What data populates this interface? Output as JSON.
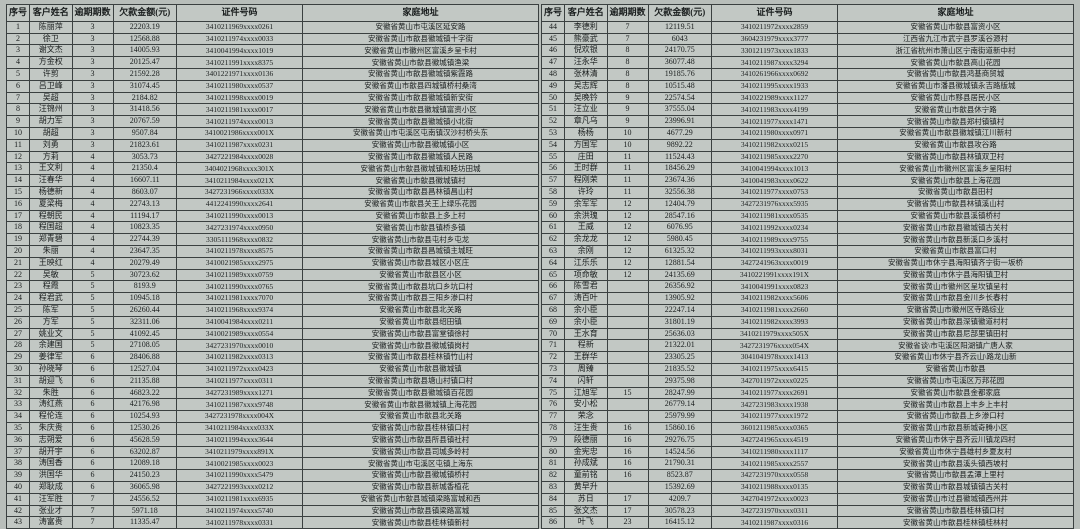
{
  "columns": [
    "序号",
    "客户姓名",
    "逾期期数",
    "欠款金额(元)",
    "证件号码",
    "家庭地址"
  ],
  "left": [
    [
      "1",
      "陈丽萍",
      "3",
      "22203.19",
      "3410211969xxxx0261",
      "安徽省黄山市屯溪区延安路"
    ],
    [
      "2",
      "徐卫",
      "3",
      "12568.88",
      "3410211974xxxx0033",
      "安徽省黄山市歙县徽城镇十字街"
    ],
    [
      "3",
      "谢文杰",
      "3",
      "14005.93",
      "3410041994xxxx1019",
      "安徽省黄山市徽州区富溪乡呈卡村"
    ],
    [
      "4",
      "方金权",
      "3",
      "20125.47",
      "3410211991xxxx8375",
      "安徽省黄山市歙县徽城镇渔梁"
    ],
    [
      "5",
      "许剪",
      "3",
      "21592.28",
      "3401221971xxxx0136",
      "安徽省黄山市歙县徽城镇紫霞路"
    ],
    [
      "6",
      "吕卫峰",
      "3",
      "31074.45",
      "3410211980xxxx0537",
      "安徽省黄山市歙县四城镇桥村桑湾"
    ],
    [
      "7",
      "吴超",
      "3",
      "2184.82",
      "3410211998xxxx0019",
      "安徽省黄山市歙县徽城镇新安街"
    ],
    [
      "8",
      "汪锦州",
      "3",
      "31418.56",
      "3410211981xxxx0017",
      "安徽省黄山市歙县徽城镇富资小区"
    ],
    [
      "9",
      "胡力军",
      "3",
      "20767.59",
      "3410211974xxxx0013",
      "安徽省黄山市歙县徽城镇小北街"
    ],
    [
      "10",
      "胡超",
      "3",
      "9507.84",
      "3410021986xxxx001X",
      "安徽省黄山市屯溪区屯南镇汉沙村桥头东"
    ],
    [
      "11",
      "刘勇",
      "3",
      "21823.61",
      "3410211987xxxx0231",
      "安徽省黄山市歙县徽城镇小区"
    ],
    [
      "12",
      "方莉",
      "4",
      "3053.73",
      "3427221984xxxx0028",
      "安徽省黄山市歙县徽城镇人民路"
    ],
    [
      "13",
      "王文利",
      "4",
      "21350.4",
      "3404021968xxxx301X",
      "安徽省黄山市歙县徽城镇和睦坊田城"
    ],
    [
      "14",
      "汪春华",
      "4",
      "16607.11",
      "3410211984xxxx021X",
      "安徽省黄山市歙县徽城镇村"
    ],
    [
      "15",
      "杨德新",
      "4",
      "8603.07",
      "3427231966xxxx033X",
      "安徽省黄山市歙县昌林镇昌山村"
    ],
    [
      "16",
      "夏梁梅",
      "4",
      "22743.13",
      "4412241990xxxx2641",
      "安徽省黄山市歙县关王上绿乐花园"
    ],
    [
      "17",
      "程朝民",
      "4",
      "11194.17",
      "3410211990xxxx0013",
      "安徽省黄山市歙县上多上村"
    ],
    [
      "18",
      "程国超",
      "4",
      "10823.35",
      "3427231974xxxx0950",
      "安徽省黄山市歙县镇桥多镇"
    ],
    [
      "19",
      "郑青碧",
      "4",
      "22744.39",
      "3305111968xxxx0832",
      "安徽省黄山市歙县屯村乡屯龙"
    ],
    [
      "20",
      "朱丽",
      "4",
      "23647.35",
      "3410211978xxxx8575",
      "安徽省黄山市歙县昌城镇主城旺"
    ],
    [
      "21",
      "王映红",
      "4",
      "20279.49",
      "3410021985xxxx2975",
      "安徽省黄山市歙县城区小区庄"
    ],
    [
      "22",
      "吴敏",
      "5",
      "30723.62",
      "3410211989xxxx0759",
      "安徽省黄山市歙县区小区"
    ],
    [
      "23",
      "程霞",
      "5",
      "8193.9",
      "3410211990xxxx0765",
      "安徽省黄山市歙县坑口乡坑口村"
    ],
    [
      "24",
      "程君武",
      "5",
      "10945.18",
      "3410211981xxxx7070",
      "安徽省黄山市歙县三阳乡渗口村"
    ],
    [
      "25",
      "陈军",
      "5",
      "26260.44",
      "3410211968xxxx9374",
      "安徽省黄山市歙县北关路"
    ],
    [
      "26",
      "方军",
      "5",
      "32311.06",
      "3410041984xxxx0211",
      "安徽省黄山市歙县绍田镇"
    ],
    [
      "27",
      "姚业文",
      "5",
      "41092.45",
      "3410021989xxxx0554",
      "安徽省黄山市歙县富堂镇徐村"
    ],
    [
      "28",
      "余建国",
      "5",
      "27108.05",
      "3427231970xxxx0010",
      "安徽省黄山市歙县徽城镇岗村"
    ],
    [
      "29",
      "姜律军",
      "6",
      "28406.88",
      "3410211982xxxx0313",
      "安徽省黄山市歙县桂林镇竹山村"
    ],
    [
      "30",
      "孙晓琴",
      "6",
      "12527.04",
      "3410211972xxxx0423",
      "安徽省黄山市歙县徽城镇"
    ],
    [
      "31",
      "胡迎飞",
      "6",
      "21135.88",
      "3410211977xxxx0311",
      "安徽省黄山市歙县塘山村镇口村"
    ],
    [
      "32",
      "朱胜",
      "6",
      "46823.22",
      "3427231989xxxx1271",
      "安徽省黄山市歙县徽城镇百花园"
    ],
    [
      "33",
      "涛红燕",
      "6",
      "42176.98",
      "3410211987xxxx9748",
      "安徽省黄山市歙县徽城镇上海花园"
    ],
    [
      "34",
      "程伦连",
      "6",
      "10254.93",
      "3427231978xxxx004X",
      "安徽省黄山市歙县北关路"
    ],
    [
      "35",
      "朱庆贵",
      "6",
      "12530.26",
      "3410211984xxxx033X",
      "安徽省黄山市歙县桂林镇口村"
    ],
    [
      "36",
      "志朔爱",
      "6",
      "45628.59",
      "3410211994xxxx3644",
      "安徽省黄山市歙县所县镇社村"
    ],
    [
      "37",
      "胡开宇",
      "6",
      "63202.87",
      "3410211979xxxx891X",
      "安徽省黄山市歙县司城多岭村"
    ],
    [
      "38",
      "涛国香",
      "6",
      "12089.18",
      "3410021985xxxx0023",
      "安徽省黄山市屯溪区屯镇上海东"
    ],
    [
      "39",
      "洪国华",
      "6",
      "24150.23",
      "3410211990xxxx5479",
      "安徽省黄山市歙县徽城镇桥村"
    ],
    [
      "40",
      "郑耿成",
      "6",
      "36065.98",
      "3427221993xxxx0212",
      "安徽省黄山市歙县新城香植花"
    ],
    [
      "41",
      "汪军胜",
      "7",
      "24556.52",
      "3410211981xxxx6935",
      "安徽省黄山市歙县城镇梁路富城和西"
    ],
    [
      "42",
      "张业才",
      "7",
      "5971.18",
      "3410211974xxxx5740",
      "安徽省黄山市歙县镇梁路富城"
    ],
    [
      "43",
      "涛富贵",
      "7",
      "11335.47",
      "3410211978xxxx0331",
      "安徽省黄山市歙县桂林镇新村"
    ]
  ],
  "right": [
    [
      "44",
      "李德利",
      "7",
      "12119.51",
      "3410211972xxxx2859",
      "安徽省黄山市歙县富资小区"
    ],
    [
      "45",
      "熊豪武",
      "7",
      "6043",
      "3604231979xxxx3777",
      "江西省九江市武宁县罗溪谷源村"
    ],
    [
      "46",
      "倪欢银",
      "8",
      "24170.75",
      "3301211973xxxx1833",
      "浙江省杭州市萧山区宁南街道新中村"
    ],
    [
      "47",
      "汪永华",
      "8",
      "36077.48",
      "3410211987xxxx3294",
      "安徽省黄山市歙县高山花园"
    ],
    [
      "48",
      "张林清",
      "8",
      "19185.76",
      "3410261966xxxx0692",
      "安徽省黄山市歙县鸿基商贸城"
    ],
    [
      "49",
      "吴志辉",
      "8",
      "10515.48",
      "3410211995xxxx1933",
      "安徽省黄山市潘县徽城镇永吉路版城"
    ],
    [
      "50",
      "吴晚钤",
      "9",
      "22574.54",
      "3410221989xxxx1127",
      "安徽省黄山市黟县居民小区"
    ],
    [
      "51",
      "汪立业",
      "9",
      "37555.04",
      "3410211983xxxx4199",
      "安徽省黄山市歙县休宁路"
    ],
    [
      "52",
      "章凡乌",
      "9",
      "23996.91",
      "3410211977xxxx1471",
      "安徽省黄山市歙县郑村镇镇村"
    ],
    [
      "53",
      "杨杨",
      "10",
      "4677.29",
      "3410211980xxxx0971",
      "安徽省黄山市歙县徽城镇江川新村"
    ],
    [
      "54",
      "方国军",
      "10",
      "9892.22",
      "3410211982xxxx0215",
      "安徽省黄山市歙县攻谷路"
    ],
    [
      "55",
      "庄田",
      "11",
      "11524.43",
      "3410211985xxxx2270",
      "安徽省黄山市歙县林镇双卫村"
    ],
    [
      "56",
      "王时群",
      "11",
      "18456.29",
      "3410041994xxxx1013",
      "安徽省黄山市徽州区富溪乡呈阳村"
    ],
    [
      "57",
      "程刚荣",
      "11",
      "23674.36",
      "3410041983xxxx0622",
      "安徽省黄山市歙县上海花园"
    ],
    [
      "58",
      "许玲",
      "11",
      "32556.38",
      "3410211977xxxx0753",
      "安徽省黄山市歙县田村"
    ],
    [
      "59",
      "余军军",
      "12",
      "12404.79",
      "3427231976xxxx5935",
      "安徽省黄山市歙县林镇溪山村"
    ],
    [
      "60",
      "余洪瑰",
      "12",
      "28547.16",
      "3410211981xxxx0535",
      "安徽省黄山市歙县溪镇桥村"
    ],
    [
      "61",
      "王威",
      "12",
      "6076.95",
      "3410211992xxxx0234",
      "安徽省黄山市歙县徽城镇古关村"
    ],
    [
      "62",
      "余龙龙",
      "12",
      "5980.45",
      "3410211989xxxx9755",
      "安徽省黄山市歙县新溪口乡溪村"
    ],
    [
      "63",
      "余刚",
      "12",
      "61325.32",
      "3410211993xxxx8031",
      "安徽省黄山市歙县富口村"
    ],
    [
      "64",
      "江乐乐",
      "12",
      "12881.54",
      "3427241963xxxx0019",
      "安徽省黄山市休宁县海阳镇齐宁街一坂桥"
    ],
    [
      "65",
      "项命敏",
      "12",
      "24135.69",
      "3410221991xxxx191X",
      "安徽省黄山市休宁县海阳镇卫村"
    ],
    [
      "66",
      "陈雪君",
      "",
      "26356.92",
      "3410041991xxxx0823",
      "安徽省黄山市徽州区呈坎镇呈村"
    ],
    [
      "67",
      "涛百叶",
      "",
      "13905.92",
      "3410211982xxxx5606",
      "安徽省黄山市歙县金川乡长春村"
    ],
    [
      "68",
      "余小臣",
      "",
      "22247.14",
      "3410211981xxxx2660",
      "安徽省黄山市徽州区寺路综业"
    ],
    [
      "69",
      "余小臣",
      "",
      "31801.19",
      "3410211982xxxx3993",
      "安徽省黄山市歙县深镇徽道村村"
    ],
    [
      "70",
      "王水育",
      "",
      "25636.03",
      "3410211979xxxx505X",
      "安徽省黄山市歙县尼部里镇田村"
    ],
    [
      "71",
      "程新",
      "",
      "21322.01",
      "3427231976xxxx054X",
      "安徽省谈\\市屯溪区阳湖镇广唐人家"
    ],
    [
      "72",
      "王群华",
      "",
      "23305.25",
      "3041041978xxxx1413",
      "安徽省黄山市休宁县齐云山\\路龙山新"
    ],
    [
      "73",
      "周臻",
      "",
      "21835.52",
      "3410211975xxxx6415",
      "安徽省黄山市歙县"
    ],
    [
      "74",
      "闪轩",
      "",
      "29375.98",
      "3427011972xxxx0225",
      "安徽省黄山市屯溪区万邦花园"
    ],
    [
      "75",
      "江旭军",
      "15",
      "28247.99",
      "3410211977xxxx2691",
      "安徽省黄山市歙县金都家庭"
    ],
    [
      "76",
      "安小松",
      "",
      "26779.14",
      "3427231983xxxx1938",
      "安徽省黄山市歙县上丰乡上丰村"
    ],
    [
      "77",
      "荣念",
      "",
      "25979.99",
      "3410211977xxxx1972",
      "安徽省黄山市歙县上乡渗口村"
    ],
    [
      "78",
      "汪生贵",
      "16",
      "15860.16",
      "3601211985xxxx0365",
      "安徽省黄山市歙县新城奇腾小区"
    ],
    [
      "79",
      "段德丽",
      "16",
      "29276.75",
      "3427241965xxxx4519",
      "安徽省黄山市休宁县齐云川镇龙四村"
    ],
    [
      "80",
      "金宪忠",
      "16",
      "14524.56",
      "3410211980xxxx1117",
      "安徽省黄山市休宁县雄村乡夏友村"
    ],
    [
      "81",
      "孙成斌",
      "16",
      "21790.31",
      "3410211985xxxx2557",
      "安徽省黄山市歙县溪头镇西坡村"
    ],
    [
      "82",
      "童前铭",
      "16",
      "8523.87",
      "3427231970xxxx0558",
      "安徽省黄山市歙县孟潭上里村"
    ],
    [
      "83",
      "黄早升",
      "",
      "15392.69",
      "3410211988xxxx0135",
      "安徽省黄山市歙县城镇镇古关村"
    ],
    [
      "84",
      "苏日",
      "17",
      "4209.7",
      "3427041972xxxx0023",
      "安徽省黄山市过县徽城镇西州井"
    ],
    [
      "85",
      "张文杰",
      "17",
      "30578.23",
      "3427231970xxxx0311",
      "安徽省黄山市歙县桂林镇口村"
    ],
    [
      "86",
      "叶飞",
      "23",
      "16415.12",
      "3410211987xxxx0316",
      "安徽省黄山市歙县桂林镇桂林村"
    ]
  ]
}
